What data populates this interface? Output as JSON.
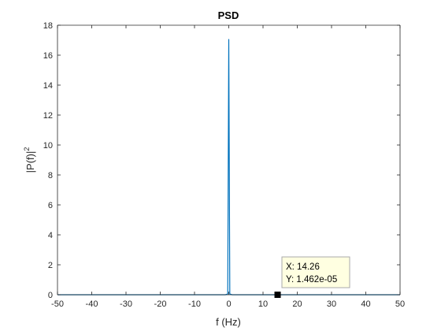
{
  "chart_data": {
    "type": "line",
    "title": "PSD",
    "xlabel": "f (Hz)",
    "ylabel_base": "|P(f)|",
    "ylabel_sup": "2",
    "xlim": [
      -50,
      50
    ],
    "ylim": [
      0,
      18
    ],
    "xticks": [
      -50,
      -40,
      -30,
      -20,
      -10,
      0,
      10,
      20,
      30,
      40,
      50
    ],
    "yticks": [
      0,
      2,
      4,
      6,
      8,
      10,
      12,
      14,
      16,
      18
    ],
    "grid": false,
    "series": [
      {
        "x": [
          -50,
          -10,
          -1,
          -0.3,
          0,
          0.3,
          1,
          10,
          14.26,
          50
        ],
        "y": [
          0,
          0,
          0,
          0.05,
          17.05,
          0.05,
          0,
          0,
          1.462e-05,
          0
        ]
      }
    ],
    "colors": {
      "line": "#0072bd",
      "axes": "#262626",
      "tooltip_bg": "#ffffe1",
      "tooltip_border": "#aaaaaa",
      "marker": "#000000"
    },
    "datatip": {
      "x": 14.26,
      "y": 1.462e-05,
      "x_text": "X: 14.26",
      "y_text": "Y: 1.462e-05"
    }
  }
}
